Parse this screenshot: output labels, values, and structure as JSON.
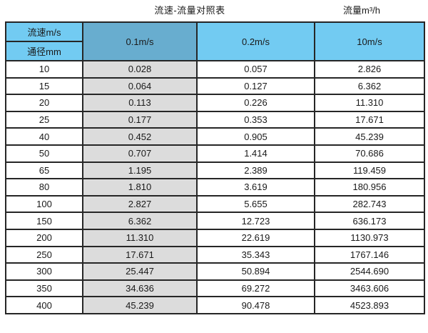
{
  "titles": {
    "main": "流速-流量对照表",
    "unit": "流量m³/h"
  },
  "chart_data": {
    "type": "table",
    "title": "流速-流量对照表",
    "unit_label": "流量m³/h",
    "column_header": "流速m/s",
    "row_header": "通径mm",
    "columns": [
      "0.1m/s",
      "0.2m/s",
      "10m/s"
    ],
    "rows": [
      {
        "diameter": "10",
        "values": [
          "0.028",
          "0.057",
          "2.826"
        ]
      },
      {
        "diameter": "15",
        "values": [
          "0.064",
          "0.127",
          "6.362"
        ]
      },
      {
        "diameter": "20",
        "values": [
          "0.113",
          "0.226",
          "11.310"
        ]
      },
      {
        "diameter": "25",
        "values": [
          "0.177",
          "0.353",
          "17.671"
        ]
      },
      {
        "diameter": "40",
        "values": [
          "0.452",
          "0.905",
          "45.239"
        ]
      },
      {
        "diameter": "50",
        "values": [
          "0.707",
          "1.414",
          "70.686"
        ]
      },
      {
        "diameter": "65",
        "values": [
          "1.195",
          "2.389",
          "119.459"
        ]
      },
      {
        "diameter": "80",
        "values": [
          "1.810",
          "3.619",
          "180.956"
        ]
      },
      {
        "diameter": "100",
        "values": [
          "2.827",
          "5.655",
          "282.743"
        ]
      },
      {
        "diameter": "150",
        "values": [
          "6.362",
          "12.723",
          "636.173"
        ]
      },
      {
        "diameter": "200",
        "values": [
          "11.310",
          "22.619",
          "1130.973"
        ]
      },
      {
        "diameter": "250",
        "values": [
          "17.671",
          "35.343",
          "1767.146"
        ]
      },
      {
        "diameter": "300",
        "values": [
          "25.447",
          "50.894",
          "2544.690"
        ]
      },
      {
        "diameter": "350",
        "values": [
          "34.636",
          "69.272",
          "3463.606"
        ]
      },
      {
        "diameter": "400",
        "values": [
          "45.239",
          "90.478",
          "4523.893"
        ]
      }
    ],
    "layout_hints": {
      "highlighted_column": "0.1m/s",
      "grid": true
    }
  },
  "colors": {
    "header_blue_light": "#72cbf2",
    "header_blue_dark": "#68adcf",
    "highlight_column_gray": "#dcdcdc",
    "border": "#262626",
    "text": "#1a1a1a",
    "background": "#ffffff"
  }
}
